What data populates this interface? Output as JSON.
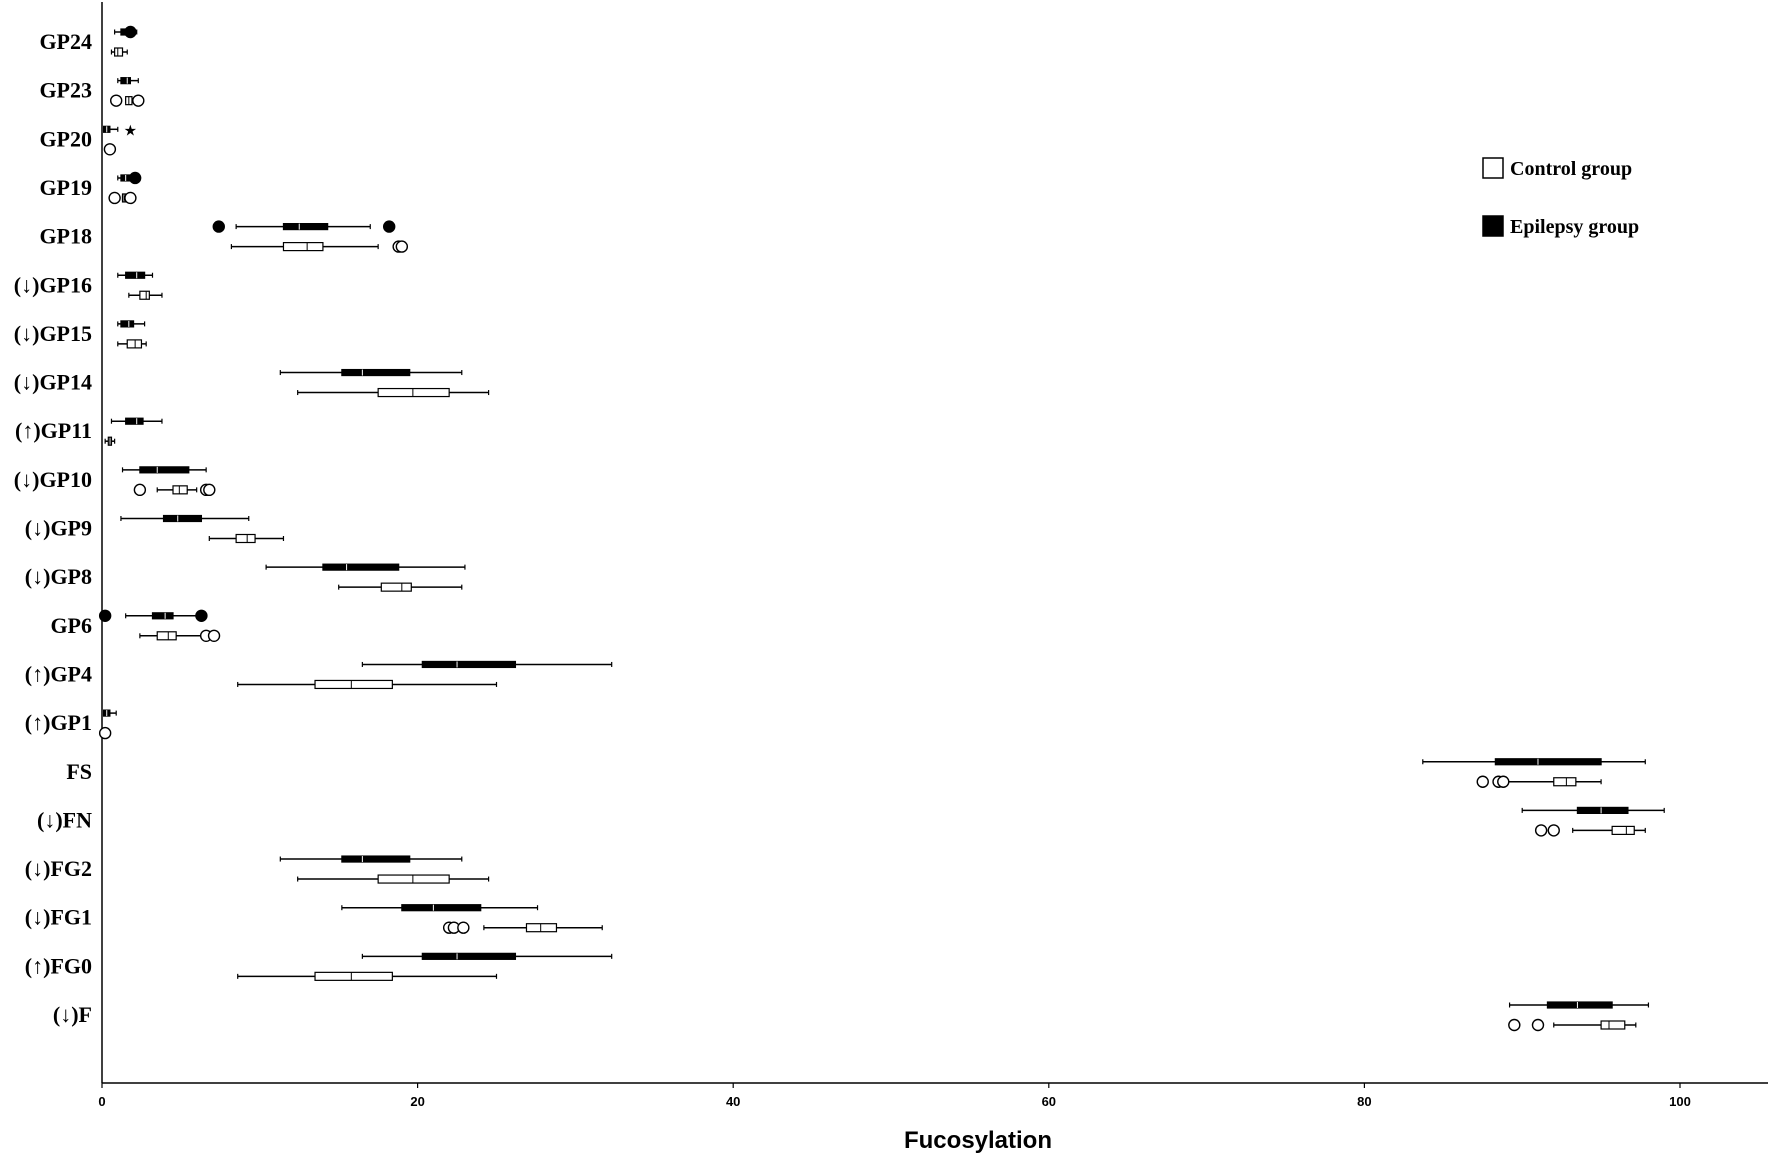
{
  "chart_data": {
    "type": "boxplot",
    "orientation": "horizontal",
    "xlabel": "Fucosylation",
    "xlim": [
      0,
      106
    ],
    "xticks": [
      0,
      20,
      40,
      60,
      80,
      100
    ],
    "categories": [
      "GP24",
      "GP23",
      "GP20",
      "GP19",
      "GP18",
      "(↓)GP16",
      "(↓)GP15",
      "(↓)GP14",
      "(↑)GP11",
      "(↓)GP10",
      "(↓)GP9",
      "(↓)GP8",
      "GP6",
      "(↑)GP4",
      "(↑)GP1",
      "FS",
      "(↓)FN",
      "(↓)FG2",
      "(↓)FG1",
      "(↑)FG0",
      "(↓)F"
    ],
    "legend": {
      "position": "top-right",
      "entries": [
        {
          "label": "Control group",
          "style": "open"
        },
        {
          "label": "Epilepsy group",
          "style": "filled"
        }
      ]
    },
    "series": [
      {
        "name": "Epilepsy group",
        "style": "filled",
        "boxes": [
          {
            "min": 0.8,
            "q1": 1.2,
            "median": 1.5,
            "q3": 1.8,
            "max": 2.2,
            "outliers": [
              1.8
            ]
          },
          {
            "min": 1.0,
            "q1": 1.2,
            "median": 1.6,
            "q3": 1.8,
            "max": 2.3,
            "outliers": []
          },
          {
            "min": 0.1,
            "q1": 0.1,
            "median": 0.3,
            "q3": 0.5,
            "max": 1.0,
            "outliers": [],
            "extremes": [
              1.8
            ]
          },
          {
            "min": 1.0,
            "q1": 1.2,
            "median": 1.5,
            "q3": 1.8,
            "max": 2.0,
            "outliers": [
              2.1
            ]
          },
          {
            "min": 8.5,
            "q1": 11.5,
            "median": 12.5,
            "q3": 14.3,
            "max": 17.0,
            "outliers": [
              7.4,
              18.2
            ]
          },
          {
            "min": 1.0,
            "q1": 1.5,
            "median": 2.2,
            "q3": 2.7,
            "max": 3.2,
            "outliers": []
          },
          {
            "min": 1.0,
            "q1": 1.2,
            "median": 1.7,
            "q3": 2.0,
            "max": 2.7,
            "outliers": []
          },
          {
            "min": 11.3,
            "q1": 15.2,
            "median": 16.5,
            "q3": 19.5,
            "max": 22.8,
            "outliers": []
          },
          {
            "min": 0.6,
            "q1": 1.5,
            "median": 2.2,
            "q3": 2.6,
            "max": 3.8,
            "outliers": []
          },
          {
            "min": 1.3,
            "q1": 2.4,
            "median": 3.5,
            "q3": 5.5,
            "max": 6.6,
            "outliers": []
          },
          {
            "min": 1.2,
            "q1": 3.9,
            "median": 4.8,
            "q3": 6.3,
            "max": 9.3,
            "outliers": []
          },
          {
            "min": 10.4,
            "q1": 14.0,
            "median": 15.5,
            "q3": 18.8,
            "max": 23.0,
            "outliers": []
          },
          {
            "min": 1.5,
            "q1": 3.2,
            "median": 4.0,
            "q3": 4.5,
            "max": 6.3,
            "outliers": [
              0.2,
              6.3
            ]
          },
          {
            "min": 16.5,
            "q1": 20.3,
            "median": 22.5,
            "q3": 26.2,
            "max": 32.3,
            "outliers": []
          },
          {
            "min": 0.1,
            "q1": 0.1,
            "median": 0.3,
            "q3": 0.5,
            "max": 0.9,
            "outliers": []
          },
          {
            "min": 83.7,
            "q1": 88.3,
            "median": 91.0,
            "q3": 95.0,
            "max": 97.8,
            "outliers": []
          },
          {
            "min": 90.0,
            "q1": 93.5,
            "median": 95.0,
            "q3": 96.7,
            "max": 99.0,
            "outliers": []
          },
          {
            "min": 11.3,
            "q1": 15.2,
            "median": 16.5,
            "q3": 19.5,
            "max": 22.8,
            "outliers": []
          },
          {
            "min": 15.2,
            "q1": 19.0,
            "median": 21.0,
            "q3": 24.0,
            "max": 27.6,
            "outliers": []
          },
          {
            "min": 16.5,
            "q1": 20.3,
            "median": 22.5,
            "q3": 26.2,
            "max": 32.3,
            "outliers": []
          },
          {
            "min": 89.2,
            "q1": 91.6,
            "median": 93.5,
            "q3": 95.7,
            "max": 98.0,
            "outliers": []
          }
        ]
      },
      {
        "name": "Control group",
        "style": "open",
        "boxes": [
          {
            "min": 0.6,
            "q1": 0.8,
            "median": 1.0,
            "q3": 1.3,
            "max": 1.6,
            "outliers": []
          },
          {
            "min": 1.5,
            "q1": 1.5,
            "median": 1.7,
            "q3": 1.9,
            "max": 2.0,
            "outliers": [
              0.9,
              2.3
            ]
          },
          {
            "min": 0.4,
            "q1": 0.4,
            "median": 0.5,
            "q3": 0.5,
            "max": 0.6,
            "outliers": [
              0.5
            ]
          },
          {
            "min": 1.3,
            "q1": 1.3,
            "median": 1.4,
            "q3": 1.5,
            "max": 1.5,
            "outliers": [
              0.8,
              1.8
            ]
          },
          {
            "min": 8.2,
            "q1": 11.5,
            "median": 13.0,
            "q3": 14.0,
            "max": 17.5,
            "outliers": [
              18.8,
              19.0
            ]
          },
          {
            "min": 1.7,
            "q1": 2.4,
            "median": 2.8,
            "q3": 3.0,
            "max": 3.8,
            "outliers": []
          },
          {
            "min": 1.0,
            "q1": 1.6,
            "median": 2.1,
            "q3": 2.5,
            "max": 2.8,
            "outliers": []
          },
          {
            "min": 12.4,
            "q1": 17.5,
            "median": 19.7,
            "q3": 22.0,
            "max": 24.5,
            "outliers": []
          },
          {
            "min": 0.2,
            "q1": 0.4,
            "median": 0.5,
            "q3": 0.6,
            "max": 0.8,
            "outliers": []
          },
          {
            "min": 3.5,
            "q1": 4.5,
            "median": 4.9,
            "q3": 5.4,
            "max": 6.0,
            "outliers": [
              2.4,
              6.6,
              6.8
            ]
          },
          {
            "min": 6.8,
            "q1": 8.5,
            "median": 9.2,
            "q3": 9.7,
            "max": 11.5,
            "outliers": []
          },
          {
            "min": 15.0,
            "q1": 17.7,
            "median": 19.0,
            "q3": 19.6,
            "max": 22.8,
            "outliers": []
          },
          {
            "min": 2.4,
            "q1": 3.5,
            "median": 4.2,
            "q3": 4.7,
            "max": 6.4,
            "outliers": [
              6.6,
              7.1
            ]
          },
          {
            "min": 8.6,
            "q1": 13.5,
            "median": 15.8,
            "q3": 18.4,
            "max": 25.0,
            "outliers": []
          },
          {
            "min": 0.1,
            "q1": 0.1,
            "median": 0.2,
            "q3": 0.2,
            "max": 0.3,
            "outliers": [
              0.2
            ]
          },
          {
            "min": 88.9,
            "q1": 92.0,
            "median": 92.8,
            "q3": 93.4,
            "max": 95.0,
            "outliers": [
              87.5,
              88.5,
              88.8
            ]
          },
          {
            "min": 93.2,
            "q1": 95.7,
            "median": 96.6,
            "q3": 97.1,
            "max": 97.8,
            "outliers": [
              91.2,
              92.0
            ]
          },
          {
            "min": 12.4,
            "q1": 17.5,
            "median": 19.7,
            "q3": 22.0,
            "max": 24.5,
            "outliers": []
          },
          {
            "min": 24.2,
            "q1": 26.9,
            "median": 27.8,
            "q3": 28.8,
            "max": 31.7,
            "outliers": [
              22.0,
              22.3,
              22.9
            ]
          },
          {
            "min": 8.6,
            "q1": 13.5,
            "median": 15.8,
            "q3": 18.4,
            "max": 25.0,
            "outliers": []
          },
          {
            "min": 92.0,
            "q1": 95.0,
            "median": 95.5,
            "q3": 96.5,
            "max": 97.2,
            "outliers": [
              89.5,
              91.0
            ]
          }
        ]
      }
    ]
  }
}
